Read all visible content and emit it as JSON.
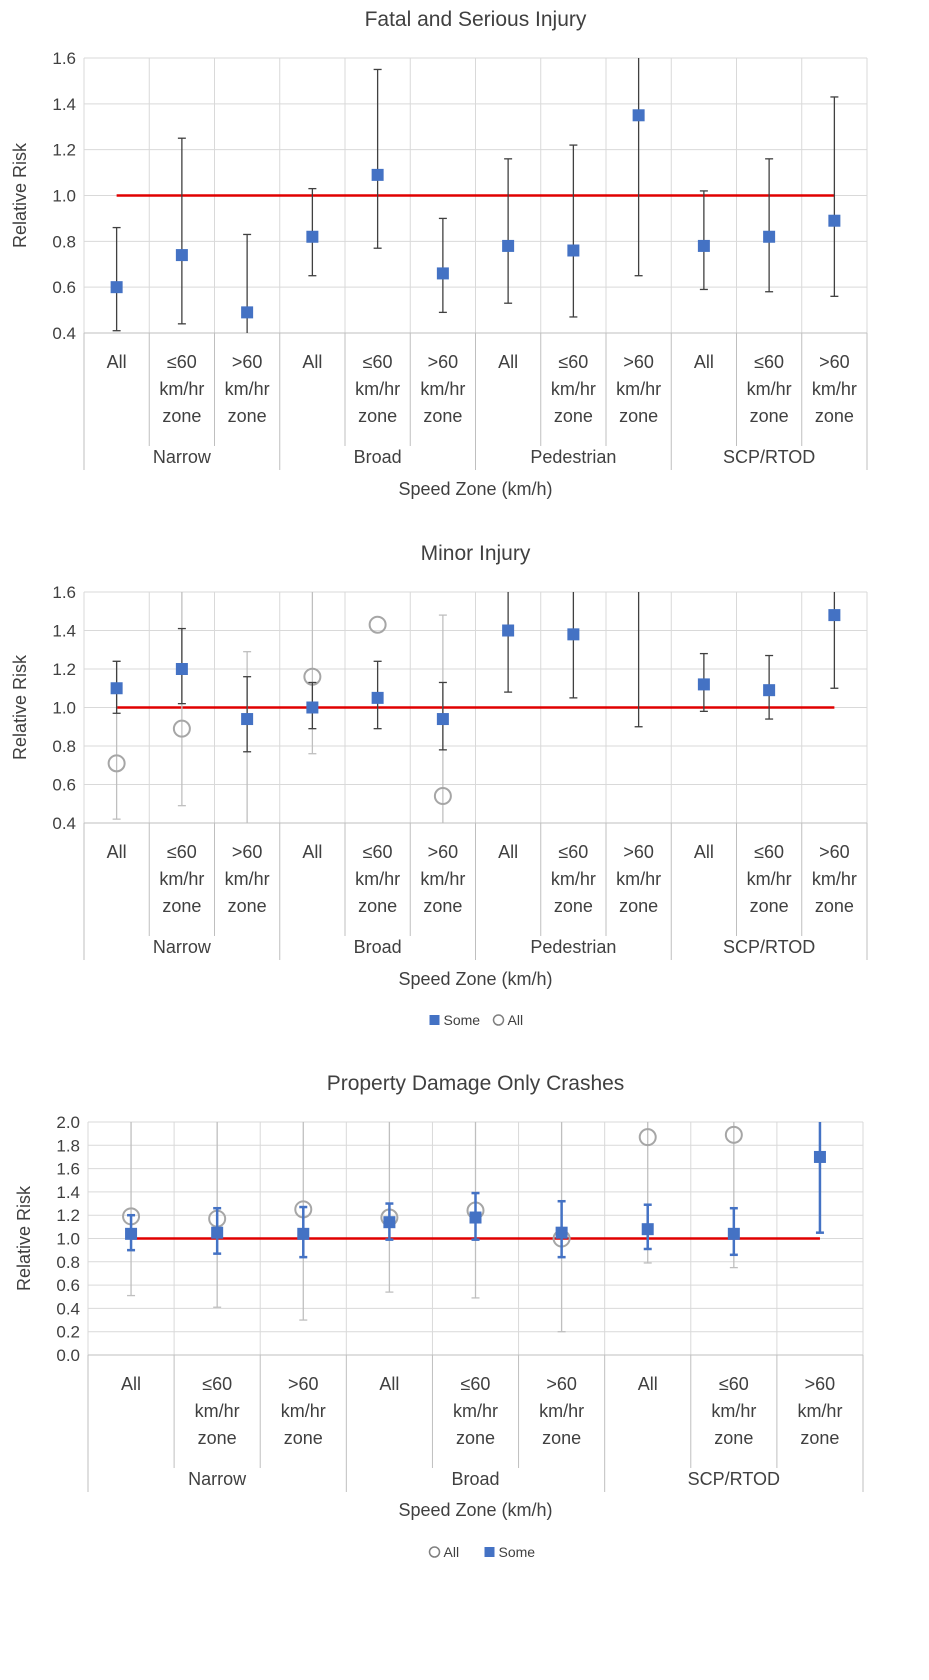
{
  "chart_data": [
    {
      "type": "scatter",
      "title": "Fatal and Serious Injury",
      "ylabel": "Relative Risk",
      "xlabel": "Speed Zone (km/h)",
      "ylim": [
        0.4,
        1.6
      ],
      "yticks": [
        "0.4",
        "0.6",
        "0.8",
        "1.0",
        "1.2",
        "1.4",
        "1.6"
      ],
      "reference_line": 1.0,
      "grid": true,
      "categories": [
        "All",
        "≤60 km/hr zone",
        ">60 km/hr zone",
        "All",
        "≤60 km/hr zone",
        ">60 km/hr zone",
        "All",
        "≤60 km/hr zone",
        ">60 km/hr zone",
        "All",
        "≤60 km/hr zone",
        ">60 km/hr zone"
      ],
      "groups": [
        "Narrow",
        "Broad",
        "Pedestrian",
        "SCP/RTOD"
      ],
      "series": [
        {
          "name": "Some",
          "marker": "filled-square",
          "color": "#4472C4",
          "values": [
            0.6,
            0.74,
            0.49,
            0.82,
            1.09,
            0.66,
            0.78,
            0.76,
            1.35,
            0.78,
            0.82,
            0.89
          ],
          "low": [
            0.41,
            0.44,
            0.29,
            0.65,
            0.77,
            0.49,
            0.53,
            0.47,
            0.65,
            0.59,
            0.58,
            0.56
          ],
          "high": [
            0.86,
            1.25,
            0.83,
            1.03,
            1.55,
            0.9,
            1.16,
            1.22,
            1.7,
            1.02,
            1.16,
            1.43
          ]
        }
      ]
    },
    {
      "type": "scatter",
      "title": "Minor Injury",
      "ylabel": "Relative Risk",
      "xlabel": "Speed Zone (km/h)",
      "ylim": [
        0.4,
        1.6
      ],
      "yticks": [
        "0.4",
        "0.6",
        "0.8",
        "1.0",
        "1.2",
        "1.4",
        "1.6"
      ],
      "reference_line": 1.0,
      "grid": true,
      "legend": "bottom",
      "categories": [
        "All",
        "≤60 km/hr zone",
        ">60 km/hr zone",
        "All",
        "≤60 km/hr zone",
        ">60 km/hr zone",
        "All",
        "≤60 km/hr zone",
        ">60 km/hr zone",
        "All",
        "≤60 km/hr zone",
        ">60 km/hr zone"
      ],
      "groups": [
        "Narrow",
        "Broad",
        "Pedestrian",
        "SCP/RTOD"
      ],
      "series": [
        {
          "name": "Some",
          "marker": "filled-square",
          "color": "#4472C4",
          "values": [
            1.1,
            1.2,
            0.94,
            1.0,
            1.05,
            0.94,
            1.4,
            1.38,
            null,
            1.12,
            1.09,
            1.48
          ],
          "low": [
            0.97,
            1.02,
            0.77,
            0.89,
            0.89,
            0.78,
            1.08,
            1.05,
            0.9,
            0.98,
            0.94,
            1.1
          ],
          "high": [
            1.24,
            1.41,
            1.16,
            1.13,
            1.24,
            1.13,
            1.7,
            1.7,
            1.7,
            1.28,
            1.27,
            1.7
          ]
        },
        {
          "name": "All",
          "marker": "open-circle",
          "color": "#A6A6A6",
          "values": [
            0.71,
            0.89,
            null,
            1.16,
            1.43,
            0.54,
            null,
            null,
            null,
            null,
            null,
            null
          ],
          "low": [
            0.42,
            0.49,
            0.3,
            0.76,
            null,
            0.3,
            null,
            null,
            null,
            null,
            null,
            null
          ],
          "high": [
            1.24,
            1.7,
            1.29,
            1.7,
            null,
            1.48,
            null,
            null,
            null,
            null,
            null,
            null
          ]
        }
      ]
    },
    {
      "type": "scatter",
      "title": "Property Damage Only Crashes",
      "ylabel": "Relative Risk",
      "xlabel": "Speed Zone (km/h)",
      "ylim": [
        0.0,
        2.0
      ],
      "yticks": [
        "0.0",
        "0.2",
        "0.4",
        "0.6",
        "0.8",
        "1.0",
        "1.2",
        "1.4",
        "1.6",
        "1.8",
        "2.0"
      ],
      "reference_line": 1.0,
      "grid": true,
      "legend": "bottom",
      "categories": [
        "All",
        "≤60 km/hr zone",
        ">60 km/hr zone",
        "All",
        "≤60 km/hr zone",
        ">60 km/hr zone",
        "All",
        "≤60 km/hr zone",
        ">60 km/hr zone"
      ],
      "groups": [
        "Narrow",
        "Broad",
        "SCP/RTOD"
      ],
      "series": [
        {
          "name": "All",
          "marker": "open-circle",
          "color": "#A6A6A6",
          "values": [
            1.19,
            1.17,
            1.25,
            1.18,
            1.24,
            1.0,
            1.87,
            1.89,
            null
          ],
          "low": [
            0.51,
            0.41,
            0.3,
            0.54,
            0.49,
            0.2,
            0.79,
            0.75,
            null
          ],
          "high": [
            2.0,
            2.0,
            2.0,
            2.0,
            2.0,
            2.0,
            2.0,
            2.0,
            null
          ]
        },
        {
          "name": "Some",
          "marker": "filled-square",
          "color": "#4472C4",
          "values": [
            1.04,
            1.05,
            1.04,
            1.14,
            1.18,
            1.05,
            1.08,
            1.04,
            1.7
          ],
          "low": [
            0.9,
            0.87,
            0.84,
            0.99,
            0.99,
            0.84,
            0.91,
            0.86,
            1.05
          ],
          "high": [
            1.2,
            1.26,
            1.27,
            1.3,
            1.39,
            1.32,
            1.29,
            1.26,
            2.0
          ]
        }
      ]
    }
  ]
}
